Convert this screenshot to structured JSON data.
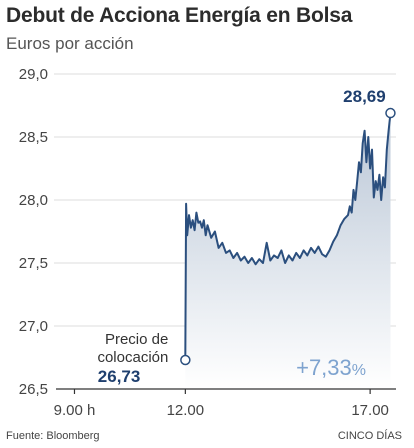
{
  "chart_data": {
    "type": "line",
    "title": "Debut de Acciona Energía en Bolsa",
    "subtitle": "Euros por acción",
    "ylim": [
      26.5,
      29.0
    ],
    "y_ticks": [
      "29,0",
      "28,5",
      "28,0",
      "27,5",
      "27,0",
      "26,5"
    ],
    "y_tick_values": [
      29.0,
      28.5,
      28.0,
      27.5,
      27.0,
      26.5
    ],
    "xlim": [
      8.5,
      17.7
    ],
    "x_ticks": [
      "9.00 h",
      "12.00",
      "17.00"
    ],
    "x_tick_values": [
      9.0,
      12.0,
      17.0
    ],
    "grid": true,
    "series": [
      {
        "values_x": [
          12.0,
          12.02,
          12.05,
          12.1,
          12.15,
          12.2,
          12.25,
          12.3,
          12.35,
          12.4,
          12.45,
          12.5,
          12.55,
          12.6,
          12.7,
          12.8,
          12.9,
          13.0,
          13.1,
          13.2,
          13.3,
          13.4,
          13.5,
          13.6,
          13.7,
          13.8,
          13.9,
          14.0,
          14.1,
          14.2,
          14.3,
          14.4,
          14.5,
          14.6,
          14.7,
          14.8,
          14.9,
          15.0,
          15.1,
          15.2,
          15.3,
          15.4,
          15.5,
          15.6,
          15.7,
          15.8,
          15.9,
          16.0,
          16.1,
          16.2,
          16.3,
          16.4,
          16.45,
          16.5,
          16.55,
          16.6,
          16.65,
          16.7,
          16.75,
          16.8,
          16.85,
          16.9,
          16.95,
          17.0,
          17.05,
          17.1,
          17.15,
          17.2,
          17.25,
          17.3,
          17.35,
          17.4,
          17.45,
          17.5,
          17.55
        ],
        "values_y": [
          26.73,
          27.97,
          27.72,
          27.88,
          27.78,
          27.84,
          27.76,
          27.9,
          27.82,
          27.83,
          27.78,
          27.84,
          27.72,
          27.8,
          27.7,
          27.75,
          27.62,
          27.66,
          27.58,
          27.6,
          27.54,
          27.58,
          27.52,
          27.55,
          27.5,
          27.54,
          27.49,
          27.53,
          27.5,
          27.66,
          27.52,
          27.56,
          27.54,
          27.6,
          27.5,
          27.56,
          27.52,
          27.58,
          27.54,
          27.6,
          27.56,
          27.62,
          27.58,
          27.63,
          27.57,
          27.55,
          27.6,
          27.67,
          27.72,
          27.8,
          27.85,
          27.88,
          27.95,
          27.9,
          28.08,
          28.0,
          28.15,
          28.3,
          28.22,
          28.45,
          28.55,
          28.3,
          28.5,
          28.25,
          28.4,
          28.02,
          28.15,
          28.08,
          28.2,
          28.0,
          28.18,
          28.1,
          28.4,
          28.55,
          28.69
        ]
      }
    ],
    "annotations": {
      "start_label_line1": "Precio de",
      "start_label_line2": "colocación",
      "start_value": "26,73",
      "end_value": "28,69",
      "change": "+7,33",
      "change_unit": "%"
    },
    "source": "Fuente: Bloomberg",
    "brand": "CINCO DÍAS",
    "colors": {
      "line": "#2b4f7e",
      "area_top": "#b9c6d6",
      "area_bottom": "#ffffff",
      "grid": "#dddddd",
      "axis": "#333333",
      "pct": "#7ea3cf"
    }
  }
}
